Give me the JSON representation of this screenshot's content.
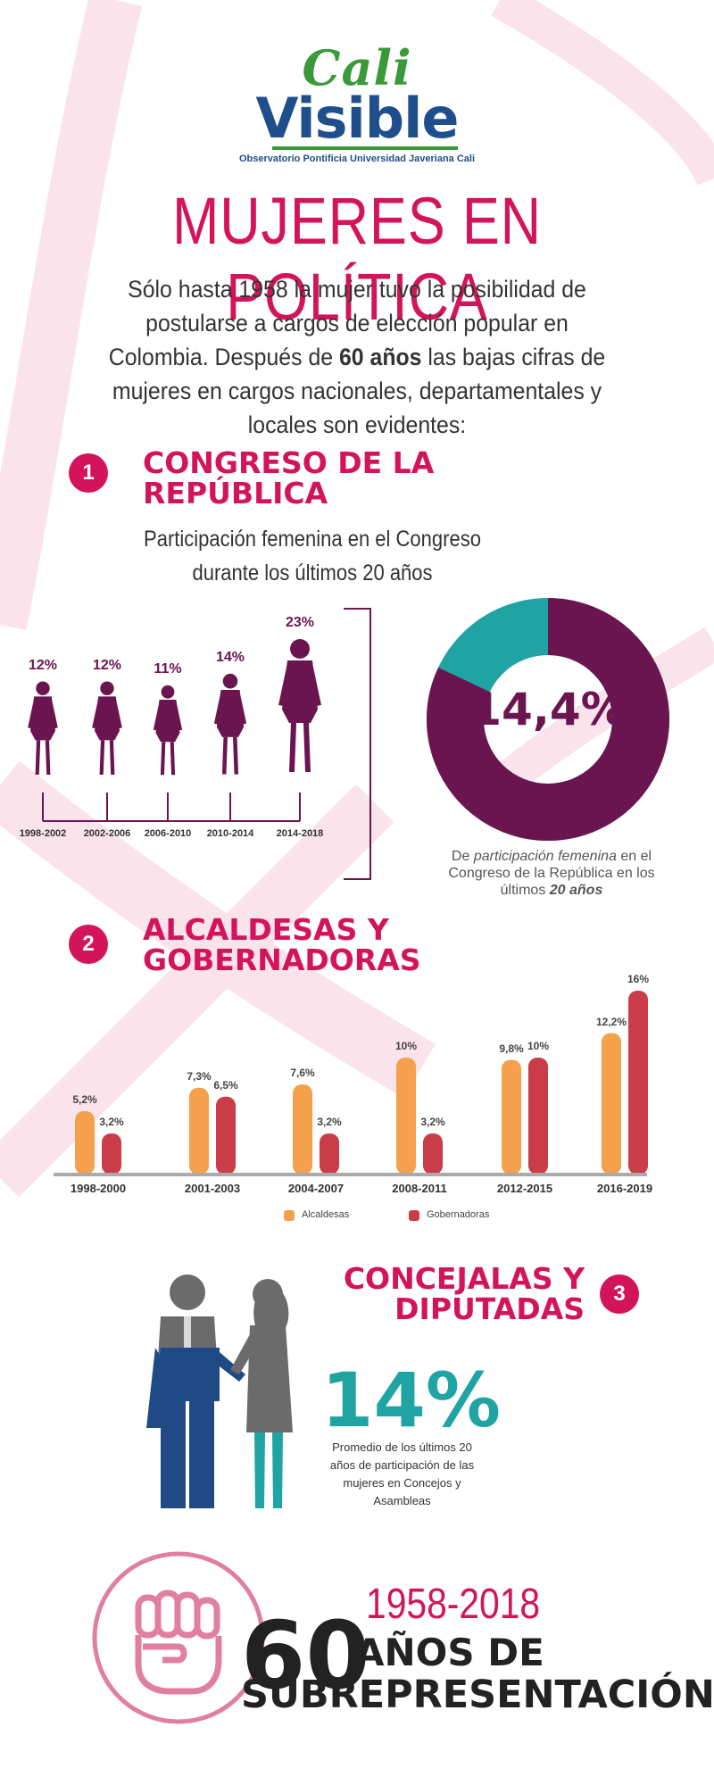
{
  "logo": {
    "line1": "Cali",
    "line2": "Visible",
    "subtitle": "Observatorio Pontificia Universidad Javeriana Cali"
  },
  "title": "MUJERES EN POLÍTICA",
  "intro": {
    "part1": "Sólo hasta 1958 la mujer tuvo la posibilidad de postularse a cargos de elección popular en Colombia. Después de ",
    "bold": "60 años",
    "part2": " las bajas cifras de mujeres en cargos nacionales, departamentales y locales son evidentes:"
  },
  "section1": {
    "number": "1",
    "title_line1": "CONGRESO DE LA",
    "title_line2": "REPÚBLICA",
    "subtitle_line1": "Participación femenina en el Congreso",
    "subtitle_line2": "durante los últimos 20 años",
    "donut_value": "14,4%",
    "donut_fraction": 0.82,
    "donut_label": {
      "part1": "De ",
      "italic": "participación femenina",
      "part2": " en el Congreso de la República en los últimos ",
      "bold": "20 años"
    }
  },
  "section2": {
    "number": "2",
    "title_line1": "ALCALDESAS Y",
    "title_line2": "GOBERNADORAS"
  },
  "section3": {
    "number": "3",
    "title_line1": "CONCEJALAS Y",
    "title_line2": "DIPUTADAS",
    "big_value": "14%",
    "description": "Promedio de los últimos 20 años de participación de las mujeres en Concejos y Asambleas"
  },
  "footer": {
    "years": "1958-2018",
    "number": "60",
    "line1": "AÑOS DE",
    "line2": "SUBREPRESENTACIÓN"
  },
  "colors": {
    "accent": "#d4145a",
    "plum": "#6b1550",
    "teal": "#1fa3a3",
    "orange": "#f5a04a",
    "red": "#c93c48"
  },
  "chart_data": [
    {
      "type": "bar",
      "categories": [
        "1998-2002",
        "2002-2006",
        "2006-2010",
        "2010-2014",
        "2014-2018"
      ],
      "values": [
        12,
        12,
        11,
        14,
        23
      ],
      "value_labels": [
        "12%",
        "12%",
        "11%",
        "14%",
        "23%"
      ]
    },
    {
      "type": "pie",
      "values": [
        14.4,
        85.6
      ]
    },
    {
      "type": "bar",
      "categories": [
        "1998-2000",
        "2001-2003",
        "2004-2007",
        "2008-2011",
        "2012-2015",
        "2016-2019"
      ],
      "series": [
        {
          "name": "Alcaldesas",
          "values": [
            5.2,
            7.3,
            7.6,
            10,
            9.8,
            12.2
          ],
          "labels": [
            "5,2%",
            "7,3%",
            "7,6%",
            "10%",
            "9,8%",
            "12,2%"
          ],
          "color": "#f5a04a"
        },
        {
          "name": "Gobernadoras",
          "values": [
            3.2,
            6.5,
            3.2,
            3.2,
            10,
            16
          ],
          "labels": [
            "3,2%",
            "6,5%",
            "3,2%",
            "3,2%",
            "10%",
            "16%"
          ],
          "color": "#c93c48"
        }
      ],
      "ylim": [
        0,
        16
      ],
      "legend": "bottom"
    }
  ]
}
